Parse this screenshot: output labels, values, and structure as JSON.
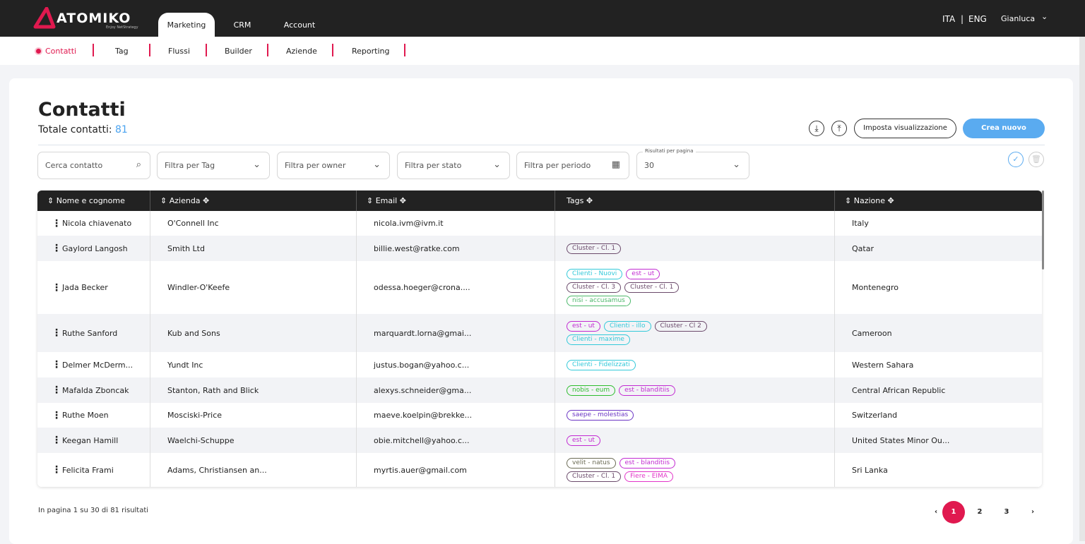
{
  "brand": {
    "name": "ATOMIKO",
    "tagline": "Enjoy NetStrategy",
    "accent": "#e0194f"
  },
  "top_tabs": [
    {
      "label": "Marketing",
      "active": true
    },
    {
      "label": "CRM"
    },
    {
      "label": "Account"
    }
  ],
  "languages": {
    "ita": "ITA",
    "sep": "|",
    "eng": "ENG"
  },
  "user": {
    "name": "Gianluca",
    "chevron": "⌄"
  },
  "subnav": [
    {
      "label": "Contatti",
      "active": true
    },
    {
      "label": "Tag"
    },
    {
      "label": "Flussi"
    },
    {
      "label": "Builder"
    },
    {
      "label": "Aziende"
    },
    {
      "label": "Reporting"
    }
  ],
  "page": {
    "title": "Contatti",
    "total_label": "Totale contatti:",
    "total": "81"
  },
  "actions": {
    "download_icon": "download-icon",
    "upload_icon": "upload-icon",
    "settings": "Imposta visualizzazione",
    "create": "Crea nuovo"
  },
  "filters": {
    "search_placeholder": "Cerca contatto",
    "tag": "Filtra per Tag",
    "owner": "Filtra per owner",
    "stato": "Filtra per stato",
    "periodo": "Filtra per periodo",
    "per_page_label": "Risultati per pagina",
    "per_page": "30"
  },
  "columns": [
    "Nome e cognome",
    "Azienda",
    "Email",
    "Tags",
    "Nazione"
  ],
  "tag_colors": {
    "cyan": "#33c9d9",
    "magenta": "#c22ad2",
    "plum": "#6b4a6b",
    "green": "#4cb86a",
    "lime": "#2ebd2e",
    "purple": "#6a35c4",
    "olive": "#6b6b55",
    "pink": "#e235c8"
  },
  "rows": [
    {
      "name": "Nicola chiavenato",
      "company": "O'Connell Inc",
      "email": "nicola.ivm@ivm.it",
      "tags": [],
      "country": "Italy"
    },
    {
      "name": "Gaylord Langosh",
      "company": "Smith Ltd",
      "email": "billie.west@ratke.com",
      "tags": [
        {
          "t": "Cluster - Cl. 1",
          "c": "plum"
        }
      ],
      "country": "Qatar"
    },
    {
      "name": "Jada Becker",
      "company": "Windler-O'Keefe",
      "email": "odessa.hoeger@crona....",
      "tags": [
        {
          "t": "Clienti - Nuovi",
          "c": "cyan"
        },
        {
          "t": "est - ut",
          "c": "magenta"
        },
        {
          "t": "Cluster - Cl. 3",
          "c": "plum"
        },
        {
          "t": "Cluster - Cl. 1",
          "c": "plum"
        },
        {
          "t": "nisi - accusamus",
          "c": "green"
        }
      ],
      "country": "Montenegro"
    },
    {
      "name": "Ruthe Sanford",
      "company": "Kub and Sons",
      "email": "marquardt.lorna@gmai...",
      "tags": [
        {
          "t": "est - ut",
          "c": "magenta"
        },
        {
          "t": "Clienti - illo",
          "c": "cyan"
        },
        {
          "t": "Cluster - Cl 2",
          "c": "plum"
        },
        {
          "t": "Clienti - maxime",
          "c": "cyan"
        }
      ],
      "country": "Cameroon"
    },
    {
      "name": "Delmer McDerm...",
      "company": "Yundt Inc",
      "email": "justus.bogan@yahoo.c...",
      "tags": [
        {
          "t": "Clienti - Fidelizzati",
          "c": "cyan"
        }
      ],
      "country": "Western Sahara"
    },
    {
      "name": "Mafalda Zboncak",
      "company": "Stanton, Rath and Blick",
      "email": "alexys.schneider@gma...",
      "tags": [
        {
          "t": "nobis - eum",
          "c": "lime"
        },
        {
          "t": "est - blanditiis",
          "c": "magenta"
        }
      ],
      "country": "Central African Republic"
    },
    {
      "name": "Ruthe Moen",
      "company": "Mosciski-Price",
      "email": "maeve.koelpin@brekke...",
      "tags": [
        {
          "t": "saepe - molestias",
          "c": "purple"
        }
      ],
      "country": "Switzerland"
    },
    {
      "name": "Keegan Hamill",
      "company": "Waelchi-Schuppe",
      "email": "obie.mitchell@yahoo.c...",
      "tags": [
        {
          "t": "est - ut",
          "c": "magenta"
        }
      ],
      "country": "United States Minor Ou..."
    },
    {
      "name": "Felicita Frami",
      "company": "Adams, Christiansen an...",
      "email": "myrtis.auer@gmail.com",
      "tags": [
        {
          "t": "velit - natus",
          "c": "olive"
        },
        {
          "t": "est - blanditiis",
          "c": "magenta"
        },
        {
          "t": "Cluster - Cl. 1",
          "c": "plum"
        },
        {
          "t": "Fiere - EIMA",
          "c": "pink"
        }
      ],
      "country": "Sri Lanka"
    }
  ],
  "footer": {
    "summary": "In pagina 1 su 30 di 81 risultati"
  },
  "pagination": {
    "prev": "‹",
    "pages": [
      "1",
      "2",
      "3"
    ],
    "current": "1",
    "next": "›"
  }
}
